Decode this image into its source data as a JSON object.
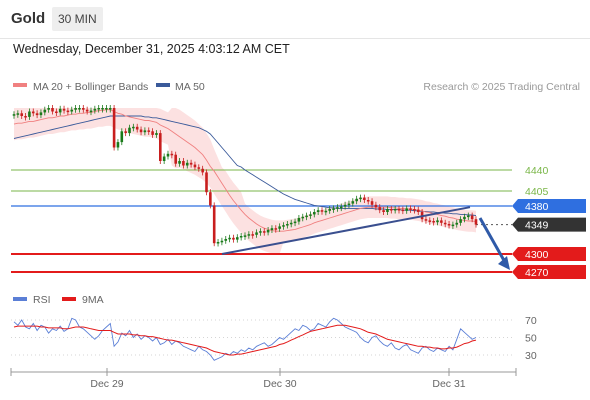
{
  "header": {
    "title": "Gold",
    "timeframe": "30 MIN",
    "datetime": "Wednesday, December 31, 2025 4:03:12 AM CET"
  },
  "chart_data": [
    {
      "type": "line",
      "panel": "price",
      "legend": [
        {
          "name": "MA 20 + Bollinger Bands",
          "color": "#f08080"
        },
        {
          "name": "MA 50",
          "color": "#3a5a9a"
        }
      ],
      "legend_position": "top-left",
      "credit": "Research © 2025 Trading Central",
      "ylim": [
        4255,
        4450
      ],
      "x_labels": [
        "Dec 29",
        "Dec 30",
        "Dec 31"
      ],
      "levels": [
        {
          "value": 4440,
          "label": "4440",
          "color": "#7ab648",
          "kind": "resistance"
        },
        {
          "value": 4405,
          "label": "4405",
          "color": "#7ab648",
          "kind": "resistance"
        },
        {
          "value": 4380,
          "label": "4380",
          "color": "#2f6fe0",
          "kind": "pivot"
        },
        {
          "value": 4349,
          "label": "4349",
          "color": "#333333",
          "kind": "last"
        },
        {
          "value": 4300,
          "label": "4300",
          "color": "#e31b1b",
          "kind": "support"
        },
        {
          "value": 4270,
          "label": "4270",
          "color": "#e31b1b",
          "kind": "support"
        }
      ],
      "candles_close": [
        4507,
        4508,
        4505,
        4504,
        4510,
        4508,
        4506,
        4509,
        4512,
        4515,
        4510,
        4509,
        4513,
        4511,
        4510,
        4512,
        4514,
        4517,
        4512,
        4510,
        4511,
        4513,
        4516,
        4518,
        4520,
        4521,
        4470,
        4476,
        4488,
        4486,
        4492,
        4493,
        4490,
        4487,
        4489,
        4488,
        4484,
        4486,
        4455,
        4460,
        4463,
        4462,
        4452,
        4455,
        4450,
        4453,
        4451,
        4448,
        4442,
        4436,
        4403,
        4381,
        4318,
        4320,
        4322,
        4325,
        4327,
        4324,
        4328,
        4330,
        4331,
        4333,
        4332,
        4336,
        4338,
        4336,
        4340,
        4343,
        4342,
        4346,
        4348,
        4350,
        4352,
        4354,
        4360,
        4362,
        4364,
        4366,
        4370,
        4373,
        4371,
        4372,
        4375,
        4376,
        4378,
        4379,
        4382,
        4384,
        4388,
        4392,
        4394,
        4390,
        4388,
        4382,
        4378,
        4373,
        4370,
        4375,
        4373,
        4375,
        4374,
        4372,
        4376,
        4375,
        4374,
        4370,
        4358,
        4356,
        4355,
        4353,
        4356,
        4352,
        4350,
        4348,
        4349,
        4352,
        4358,
        4362,
        4364,
        4358,
        4349
      ],
      "ma20": [
        4496,
        4497,
        4497,
        4498,
        4499,
        4499,
        4500,
        4501,
        4502,
        4503,
        4503,
        4504,
        4505,
        4505,
        4506,
        4507,
        4507,
        4508,
        4508,
        4509,
        4509,
        4510,
        4511,
        4511,
        4512,
        4512,
        4510,
        4508,
        4507,
        4505,
        4504,
        4503,
        4502,
        4501,
        4500,
        4500,
        4499,
        4498,
        4495,
        4493,
        4491,
        4488,
        4485,
        4482,
        4479,
        4476,
        4473,
        4470,
        4466,
        4462,
        4456,
        4449,
        4438,
        4428,
        4418,
        4408,
        4398,
        4389,
        4381,
        4373,
        4366,
        4360,
        4355,
        4350,
        4346,
        4343,
        4341,
        4339,
        4338,
        4338,
        4338,
        4339,
        4340,
        4341,
        4343,
        4345,
        4347,
        4349,
        4352,
        4354,
        4356,
        4358,
        4360,
        4362,
        4364,
        4366,
        4368,
        4370,
        4372,
        4374,
        4376,
        4377,
        4378,
        4378,
        4378,
        4378,
        4378,
        4378,
        4377,
        4377,
        4376,
        4376,
        4375,
        4375,
        4374,
        4373,
        4372,
        4370,
        4369,
        4367,
        4366,
        4364,
        4363,
        4361,
        4360,
        4358,
        4357,
        4356,
        4355,
        4355,
        4354
      ],
      "ma50": [
        4480,
        4481,
        4482,
        4483,
        4484,
        4485,
        4486,
        4487,
        4488,
        4489,
        4490,
        4491,
        4492,
        4493,
        4494,
        4495,
        4496,
        4497,
        4498,
        4499,
        4500,
        4501,
        4502,
        4503,
        4504,
        4505,
        4505,
        4505,
        4505,
        4505,
        4505,
        4505,
        4505,
        4505,
        4504,
        4504,
        4503,
        4503,
        4502,
        4501,
        4500,
        4499,
        4498,
        4497,
        4496,
        4495,
        4494,
        4493,
        4492,
        4490,
        4488,
        4485,
        4480,
        4475,
        4470,
        4465,
        4460,
        4455,
        4450,
        4445,
        4440,
        4436,
        4432,
        4428,
        4424,
        4420,
        4416,
        4412,
        4408,
        4404,
        4400,
        4397,
        4394,
        4391,
        4389,
        4387,
        4385,
        4383,
        4381,
        4380,
        4379,
        4378,
        4377,
        4377,
        4376,
        4376,
        4376,
        4376,
        4376,
        4376,
        4376,
        4376,
        4376,
        4376,
        4375,
        4375,
        4375,
        4374,
        4374,
        4374,
        4374,
        4373,
        4373,
        4373,
        4372,
        4372,
        4371,
        4371,
        4370,
        4370,
        4369,
        4369,
        4368,
        4368,
        4367,
        4367,
        4366,
        4366,
        4365,
        4365,
        4364
      ],
      "trendline": {
        "from": 4300,
        "to": 4378
      },
      "forecast_arrow": {
        "from": 4360,
        "to": 4270
      }
    },
    {
      "type": "line",
      "panel": "indicator",
      "legend": [
        {
          "name": "RSI",
          "color": "#5b7fd6"
        },
        {
          "name": "9MA",
          "color": "#e31b1b"
        }
      ],
      "y_ticks": [
        70,
        50,
        30
      ],
      "ylim": [
        5,
        95
      ],
      "rsi": [
        68,
        64,
        70,
        62,
        60,
        66,
        58,
        64,
        62,
        55,
        60,
        58,
        63,
        57,
        60,
        72,
        70,
        62,
        60,
        56,
        52,
        48,
        52,
        58,
        62,
        66,
        40,
        45,
        55,
        52,
        58,
        50,
        54,
        48,
        52,
        50,
        46,
        50,
        42,
        44,
        48,
        42,
        46,
        44,
        40,
        38,
        36,
        34,
        40,
        36,
        34,
        30,
        24,
        26,
        28,
        32,
        30,
        34,
        32,
        36,
        34,
        38,
        36,
        40,
        42,
        44,
        40,
        42,
        46,
        50,
        48,
        52,
        56,
        60,
        58,
        64,
        62,
        58,
        60,
        66,
        64,
        62,
        68,
        72,
        70,
        66,
        62,
        60,
        58,
        56,
        50,
        46,
        44,
        50,
        52,
        46,
        42,
        40,
        44,
        38,
        36,
        40,
        42,
        36,
        34,
        32,
        38,
        40,
        36,
        34,
        38,
        36,
        34,
        40,
        36,
        48,
        60,
        56,
        52,
        48,
        50
      ],
      "ma9": [
        62,
        63,
        63,
        63,
        63,
        63,
        63,
        62,
        62,
        61,
        61,
        61,
        61,
        60,
        60,
        61,
        62,
        62,
        62,
        61,
        60,
        59,
        58,
        58,
        58,
        58,
        56,
        54,
        54,
        54,
        54,
        53,
        53,
        52,
        52,
        51,
        51,
        50,
        49,
        48,
        47,
        47,
        46,
        45,
        44,
        43,
        42,
        41,
        40,
        39,
        38,
        36,
        34,
        33,
        32,
        31,
        30,
        30,
        31,
        31,
        32,
        33,
        34,
        35,
        36,
        37,
        38,
        39,
        40,
        42,
        43,
        45,
        47,
        49,
        51,
        53,
        55,
        57,
        58,
        59,
        60,
        61,
        62,
        63,
        64,
        64,
        64,
        63,
        62,
        61,
        60,
        58,
        56,
        55,
        54,
        52,
        50,
        48,
        47,
        46,
        45,
        44,
        43,
        42,
        41,
        40,
        40,
        39,
        39,
        38,
        38,
        37,
        37,
        38,
        38,
        39,
        41,
        43,
        44,
        46,
        47
      ]
    }
  ]
}
